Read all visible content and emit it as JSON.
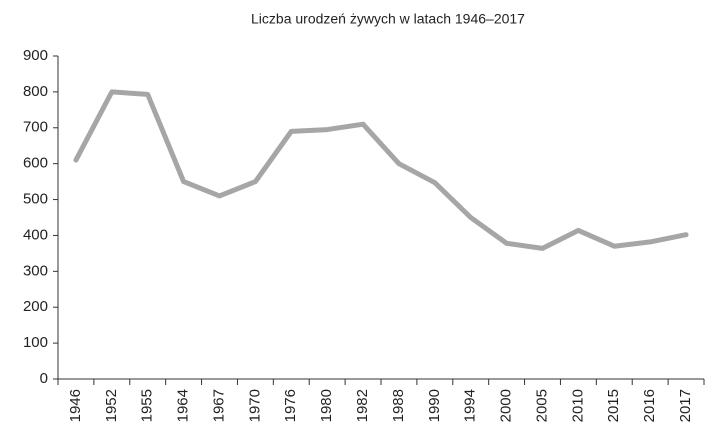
{
  "chart_data": {
    "type": "line",
    "title": "Liczba urodzeń żywych w latach 1946–2017",
    "categories": [
      "1946",
      "1952",
      "1955",
      "1964",
      "1967",
      "1970",
      "1976",
      "1980",
      "1982",
      "1988",
      "1990",
      "1994",
      "2000",
      "2005",
      "2010",
      "2015",
      "2016",
      "2017"
    ],
    "series": [
      {
        "name": null,
        "color": "#a6a6a6",
        "values": [
          610,
          800,
          793,
          550,
          510,
          550,
          690,
          695,
          710,
          600,
          547,
          450,
          378,
          364,
          414,
          370,
          382,
          402
        ]
      }
    ],
    "ylim": [
      0,
      900
    ],
    "yticks": [
      0,
      100,
      200,
      300,
      400,
      500,
      600,
      700,
      800,
      900
    ],
    "grid": false
  }
}
